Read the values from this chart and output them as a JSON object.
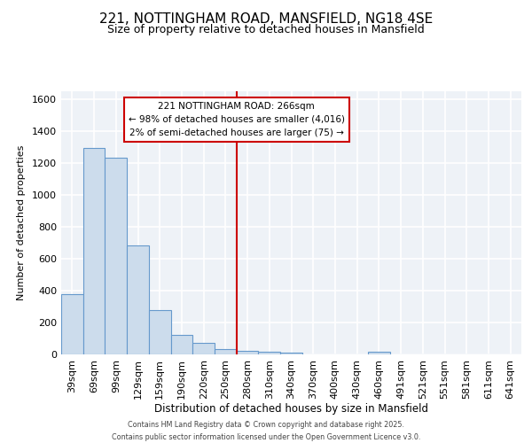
{
  "title1": "221, NOTTINGHAM ROAD, MANSFIELD, NG18 4SE",
  "title2": "Size of property relative to detached houses in Mansfield",
  "xlabel": "Distribution of detached houses by size in Mansfield",
  "ylabel": "Number of detached properties",
  "categories": [
    "39sqm",
    "69sqm",
    "99sqm",
    "129sqm",
    "159sqm",
    "190sqm",
    "220sqm",
    "250sqm",
    "280sqm",
    "310sqm",
    "340sqm",
    "370sqm",
    "400sqm",
    "430sqm",
    "460sqm",
    "491sqm",
    "521sqm",
    "551sqm",
    "581sqm",
    "611sqm",
    "641sqm"
  ],
  "values": [
    375,
    1295,
    1230,
    680,
    275,
    120,
    70,
    35,
    20,
    15,
    10,
    0,
    0,
    0,
    18,
    0,
    0,
    0,
    0,
    0,
    0
  ],
  "bar_color": "#ccdcec",
  "bar_edge_color": "#6699cc",
  "ylim": [
    0,
    1650
  ],
  "yticks": [
    0,
    200,
    400,
    600,
    800,
    1000,
    1200,
    1400,
    1600
  ],
  "vline_color": "#cc0000",
  "annotation_line1": "221 NOTTINGHAM ROAD: 266sqm",
  "annotation_line2": "← 98% of detached houses are smaller (4,016)",
  "annotation_line3": "2% of semi-detached houses are larger (75) →",
  "annotation_box_color": "#cc0000",
  "footer1": "Contains HM Land Registry data © Crown copyright and database right 2025.",
  "footer2": "Contains public sector information licensed under the Open Government Licence v3.0.",
  "background_color": "#eef2f7",
  "grid_color": "#ffffff",
  "title1_fontsize": 11,
  "title2_fontsize": 9
}
